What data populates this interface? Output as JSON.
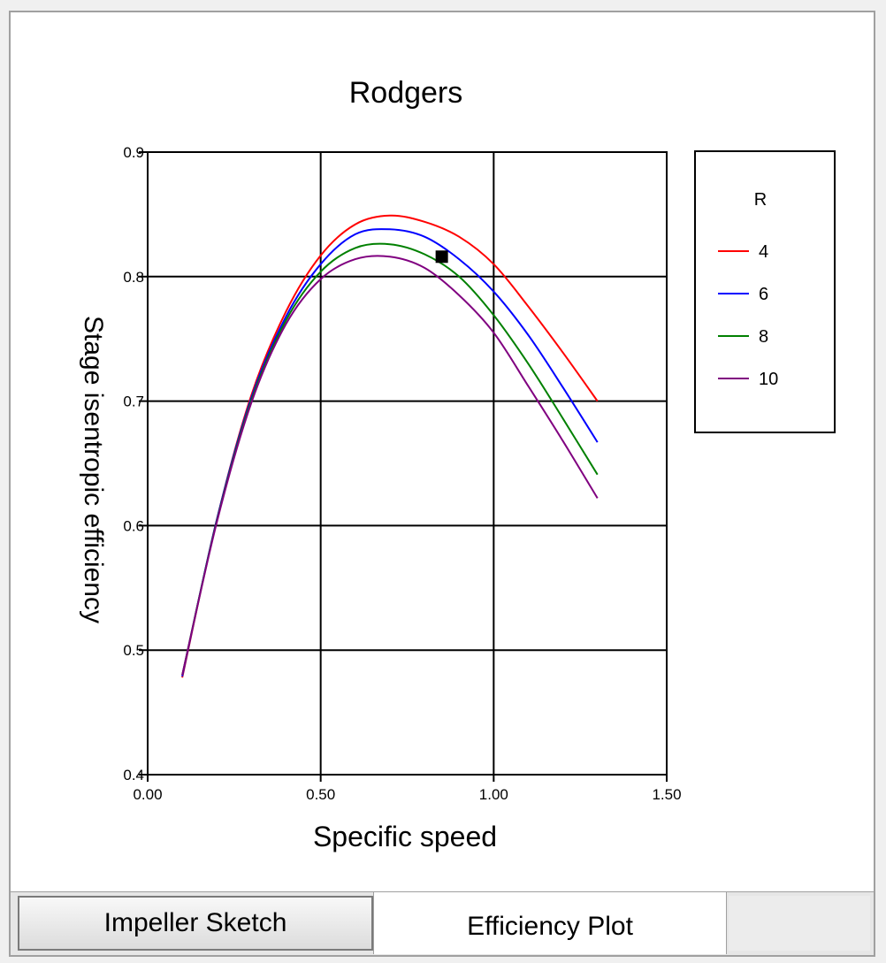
{
  "tabs": [
    {
      "label": "Impeller Sketch"
    },
    {
      "label": "Efficiency Plot"
    }
  ],
  "chart_data": {
    "type": "line",
    "title": "Rodgers",
    "xlabel": "Specific speed",
    "ylabel": "Stage isentropic efficiency",
    "xlim": [
      0.0,
      1.5
    ],
    "ylim": [
      0.4,
      0.9
    ],
    "x_ticks": [
      "0.00",
      "0.50",
      "1.00",
      "1.50"
    ],
    "y_ticks": [
      "0.4",
      "0.5",
      "0.6",
      "0.7",
      "0.8",
      "0.9"
    ],
    "grid": true,
    "legend": {
      "title": "R",
      "position": "right"
    },
    "x": [
      0.1,
      0.2,
      0.3,
      0.4,
      0.5,
      0.6,
      0.7,
      0.8,
      0.9,
      1.0,
      1.1,
      1.2,
      1.3
    ],
    "series": [
      {
        "name": "4",
        "color": "#ff0000",
        "values": [
          0.478,
          0.605,
          0.705,
          0.772,
          0.817,
          0.842,
          0.849,
          0.844,
          0.832,
          0.81,
          0.776,
          0.739,
          0.7
        ]
      },
      {
        "name": "6",
        "color": "#0000ff",
        "values": [
          0.479,
          0.605,
          0.703,
          0.768,
          0.81,
          0.834,
          0.838,
          0.832,
          0.814,
          0.788,
          0.753,
          0.711,
          0.667
        ]
      },
      {
        "name": "8",
        "color": "#008000",
        "values": [
          0.48,
          0.604,
          0.701,
          0.765,
          0.804,
          0.823,
          0.826,
          0.818,
          0.8,
          0.769,
          0.73,
          0.686,
          0.641
        ]
      },
      {
        "name": "10",
        "color": "#800080",
        "values": [
          0.48,
          0.603,
          0.699,
          0.762,
          0.798,
          0.814,
          0.816,
          0.807,
          0.785,
          0.755,
          0.712,
          0.668,
          0.622
        ]
      }
    ],
    "marker": {
      "x": 0.85,
      "y": 0.816,
      "color": "#000000"
    }
  }
}
